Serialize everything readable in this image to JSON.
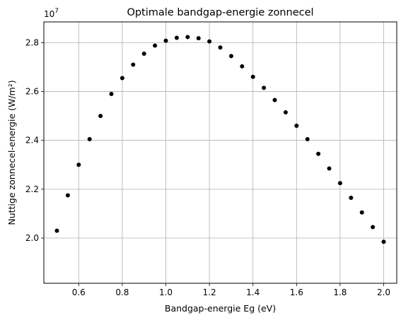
{
  "chart_data": {
    "type": "scatter",
    "title": "Optimale bandgap-energie zonnecel",
    "xlabel": "Bandgap-energie Eg (eV)",
    "ylabel": "Nuttige zonnecel-energie (W/m²)",
    "y_multiplier": "1e7",
    "xlim": [
      0.44,
      2.06
    ],
    "ylim": [
      18150000.0,
      28850000.0
    ],
    "x_ticks": [
      {
        "value": 0.6,
        "label": "0.6"
      },
      {
        "value": 0.8,
        "label": "0.8"
      },
      {
        "value": 1.0,
        "label": "1.0"
      },
      {
        "value": 1.2,
        "label": "1.2"
      },
      {
        "value": 1.4,
        "label": "1.4"
      },
      {
        "value": 1.6,
        "label": "1.6"
      },
      {
        "value": 1.8,
        "label": "1.8"
      },
      {
        "value": 2.0,
        "label": "2.0"
      }
    ],
    "y_ticks": [
      {
        "value": 20000000,
        "label": "2.0"
      },
      {
        "value": 22000000,
        "label": "2.2"
      },
      {
        "value": 24000000,
        "label": "2.4"
      },
      {
        "value": 26000000,
        "label": "2.6"
      },
      {
        "value": 28000000,
        "label": "2.8"
      }
    ],
    "grid": true,
    "marker_color": "#000000",
    "series": [
      {
        "x": [
          0.5,
          0.55,
          0.6,
          0.65,
          0.7,
          0.75,
          0.8,
          0.85,
          0.9,
          0.95,
          1.0,
          1.05,
          1.1,
          1.15,
          1.2,
          1.25,
          1.3,
          1.35,
          1.4,
          1.45,
          1.5,
          1.55,
          1.6,
          1.65,
          1.7,
          1.75,
          1.8,
          1.85,
          1.9,
          1.95,
          2.0
        ],
        "y": [
          20300000,
          21750000,
          23000000,
          24050000,
          25000000,
          25900000,
          26550000,
          27100000,
          27550000,
          27880000,
          28080000,
          28200000,
          28230000,
          28180000,
          28050000,
          27800000,
          27450000,
          27030000,
          26600000,
          26150000,
          25650000,
          25150000,
          24600000,
          24050000,
          23450000,
          22850000,
          22250000,
          21650000,
          21050000,
          20450000,
          19850000
        ]
      }
    ]
  }
}
